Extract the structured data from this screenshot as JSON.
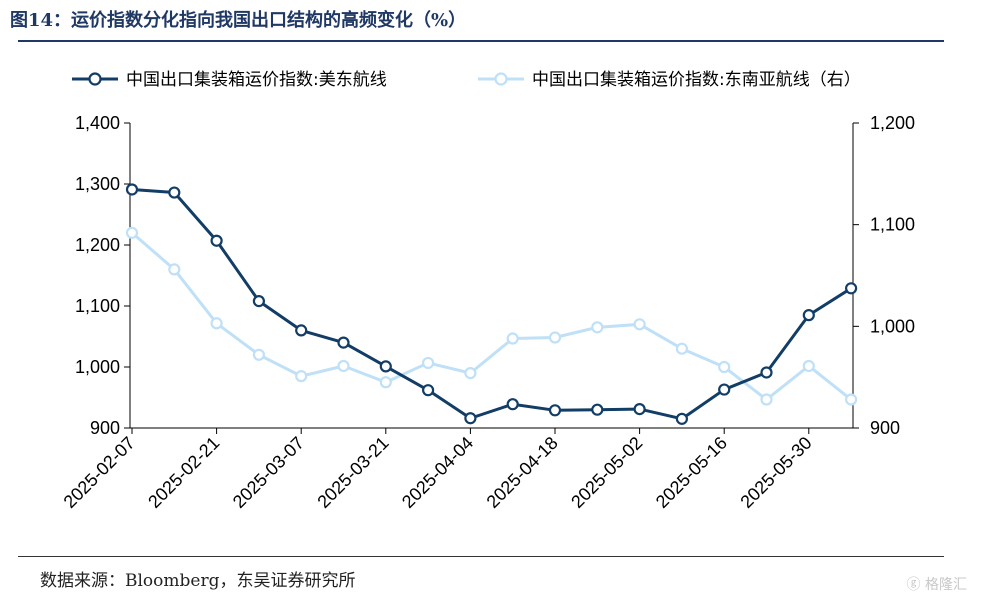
{
  "header": {
    "title": "图14：运价指数分化指向我国出口结构的高频变化（%）"
  },
  "footer": {
    "source": "数据来源：Bloomberg，东吴证券研究所",
    "watermark": "ⓖ 格隆汇"
  },
  "chart_data": {
    "type": "line",
    "title": "",
    "x": [
      "2025-02-07",
      "2025-02-14",
      "2025-02-21",
      "2025-02-28",
      "2025-03-07",
      "2025-03-14",
      "2025-03-21",
      "2025-03-28",
      "2025-04-04",
      "2025-04-11",
      "2025-04-18",
      "2025-04-25",
      "2025-05-02",
      "2025-05-09",
      "2025-05-16",
      "2025-05-23",
      "2025-05-30",
      "2025-06-06"
    ],
    "x_tick_labels": [
      "2025-02-07",
      "2025-02-21",
      "2025-03-07",
      "2025-03-21",
      "2025-04-04",
      "2025-04-18",
      "2025-05-02",
      "2025-05-16",
      "2025-05-30"
    ],
    "y_left": {
      "ylim": [
        900,
        1400
      ],
      "ticks": [
        "900",
        "1,000",
        "1,100",
        "1,200",
        "1,300",
        "1,400"
      ],
      "tick_values": [
        900,
        1000,
        1100,
        1200,
        1300,
        1400
      ]
    },
    "y_right": {
      "ylim": [
        900,
        1200
      ],
      "ticks": [
        "900",
        "1,000",
        "1,100",
        "1,200"
      ],
      "tick_values": [
        900,
        1000,
        1100,
        1200
      ]
    },
    "series": [
      {
        "name": "中国出口集装箱运价指数:美东航线",
        "axis": "left",
        "color": "#123d66",
        "values": [
          1291,
          1286,
          1207,
          1108,
          1060,
          1040,
          1001,
          962,
          916,
          939,
          929,
          930,
          931,
          915,
          963,
          991,
          1085,
          1129
        ]
      },
      {
        "name": "中国出口集装箱运价指数:东南亚航线（右）",
        "axis": "right",
        "color": "#bfe0f7",
        "values": [
          1092,
          1056,
          1003,
          972,
          951,
          961,
          945,
          964,
          954,
          988,
          989,
          999,
          1002,
          978,
          960,
          928,
          961,
          928
        ]
      }
    ],
    "grid": false,
    "legend": "top"
  }
}
